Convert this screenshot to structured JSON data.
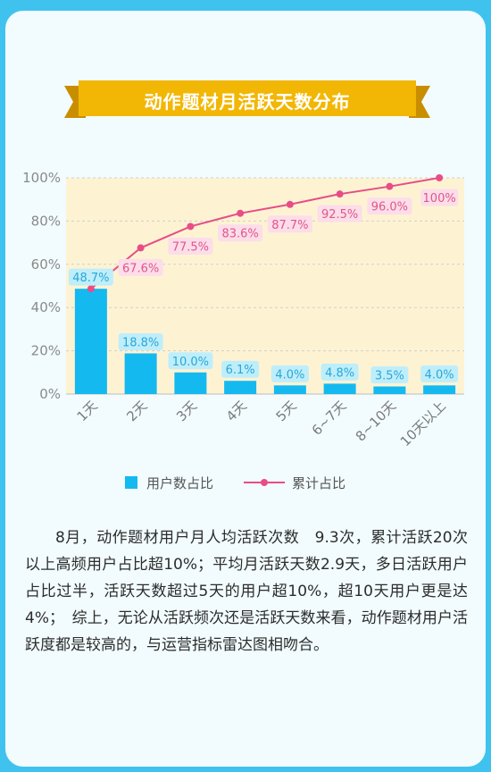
{
  "banner": {
    "title": "动作题材月活跃天数分布"
  },
  "chart_data": {
    "type": "bar",
    "categories": [
      "1天",
      "2天",
      "3天",
      "4天",
      "5天",
      "6~7天",
      "8~10天",
      "10天以上"
    ],
    "series": [
      {
        "name": "用户数占比",
        "type": "bar",
        "values": [
          48.7,
          18.8,
          10.0,
          6.1,
          4.0,
          4.8,
          3.5,
          4.0
        ],
        "labels": [
          "48.7%",
          "18.8%",
          "10.0%",
          "6.1%",
          "4.0%",
          "4.8%",
          "3.5%",
          "4.0%"
        ],
        "color": "#14b9f0"
      },
      {
        "name": "累计占比",
        "type": "line",
        "values": [
          48.7,
          67.6,
          77.5,
          83.6,
          87.7,
          92.5,
          96.0,
          100
        ],
        "labels": [
          "48.7%",
          "67.6%",
          "77.5%",
          "83.6%",
          "87.7%",
          "92.5%",
          "96.0%",
          "100%"
        ],
        "color": "#e84d87"
      }
    ],
    "ylim": [
      0,
      100
    ],
    "yticks": [
      "0%",
      "20%",
      "40%",
      "60%",
      "80%",
      "100%"
    ],
    "grid": true,
    "legend": "bottom"
  },
  "legend": {
    "bar_label": "用户数占比",
    "line_label": "累计占比"
  },
  "paragraph": "8月，动作题材用户月人均活跃次数　9.3次，累计活跃20次以上高频用户占比超10%；平均月活跃天数2.9天，多日活跃用户占比过半，活跃天数超过5天的用户超10%，超10天用户更是达4%；　综上，无论从活跃频次还是活跃天数来看，动作题材用户活跃度都是较高的，与运营指标雷达图相吻合。",
  "colors": {
    "background": "#3fc3ee",
    "card": "#f2fcfe",
    "banner": "#f2b705",
    "banner_dark": "#c98e00",
    "plot_area": "#fdf3d3",
    "bar": "#14b9f0",
    "line": "#e84d87",
    "bar_label_bg": "#bfeefb",
    "line_label_bg": "#fcdde9"
  }
}
